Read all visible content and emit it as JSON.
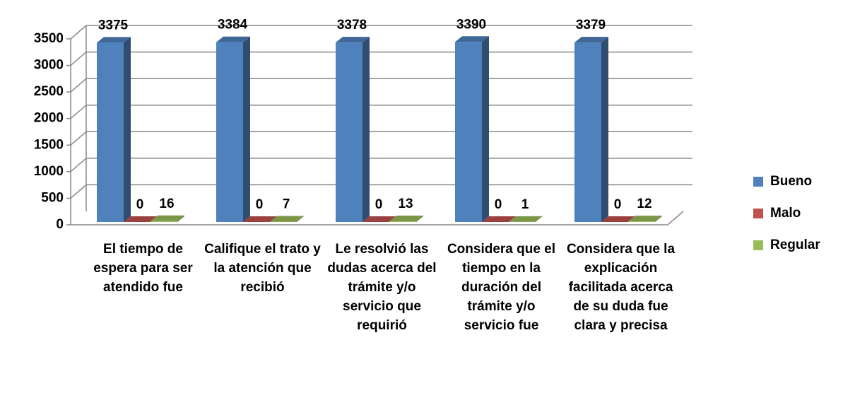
{
  "chart_data": {
    "type": "bar3d",
    "categories": [
      "El tiempo de espera para ser atendido fue",
      "Califique el trato y la atención que recibió",
      "Le resolvió las dudas acerca del trámite y/o servicio que requirió",
      "Considera que el tiempo en la duración del trámite y/o servicio fue",
      "Considera que la explicación facilitada acerca de su duda fue clara y precisa"
    ],
    "series": [
      {
        "name": "Bueno",
        "color": "#4f81bd",
        "values": [
          3375,
          3384,
          3378,
          3390,
          3379
        ]
      },
      {
        "name": "Malo",
        "color": "#c0504d",
        "values": [
          0,
          0,
          0,
          0,
          0
        ]
      },
      {
        "name": "Regular",
        "color": "#9bbb59",
        "values": [
          16,
          7,
          13,
          1,
          12
        ]
      }
    ],
    "ylim": [
      0,
      3500
    ],
    "yticks": [
      0,
      500,
      1000,
      1500,
      2000,
      2500,
      3000,
      3500
    ],
    "grid": true,
    "legend": "right"
  }
}
